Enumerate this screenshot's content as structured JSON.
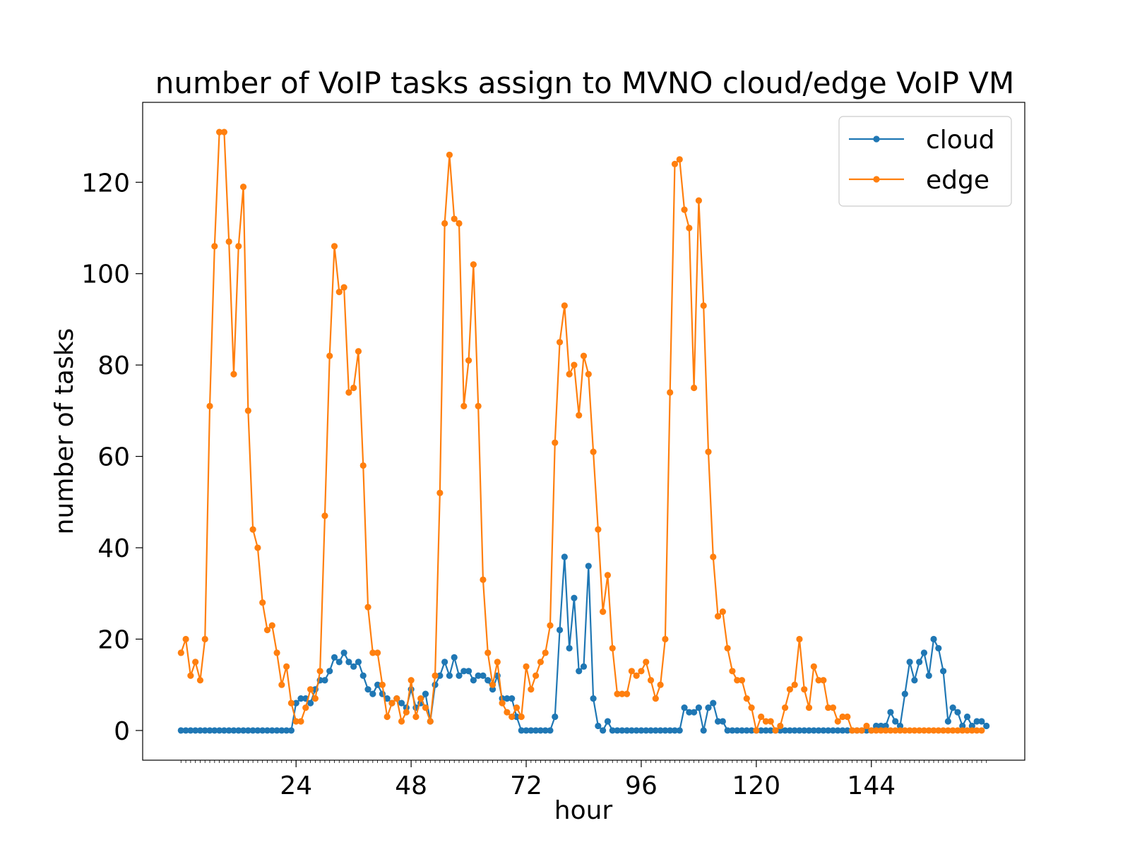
{
  "chart_data": {
    "type": "line",
    "title": "number of VoIP tasks assign to MVNO cloud/edge VoIP VM",
    "xlabel": "hour",
    "ylabel": "number of tasks",
    "xlim": [
      -8,
      176
    ],
    "ylim": [
      -6.5,
      137.5
    ],
    "x_ticks_major": [
      24,
      48,
      72,
      96,
      120,
      144
    ],
    "y_ticks": [
      0,
      20,
      40,
      60,
      80,
      100,
      120
    ],
    "grid": false,
    "legend_position": "top-right",
    "series": [
      {
        "name": "cloud",
        "color": "#1f77b4",
        "values": [
          0,
          0,
          0,
          0,
          0,
          0,
          0,
          0,
          0,
          0,
          0,
          0,
          0,
          0,
          0,
          0,
          0,
          0,
          0,
          0,
          0,
          0,
          0,
          0,
          6,
          7,
          7,
          6,
          9,
          11,
          11,
          13,
          16,
          15,
          17,
          15,
          14,
          15,
          12,
          9,
          8,
          10,
          8,
          7,
          6,
          7,
          6,
          5,
          9,
          5,
          6,
          8,
          2,
          10,
          12,
          15,
          12,
          16,
          12,
          13,
          13,
          11,
          12,
          12,
          11,
          9,
          12,
          7,
          7,
          7,
          3,
          0,
          0,
          0,
          0,
          0,
          0,
          0,
          3,
          22,
          38,
          18,
          29,
          13,
          14,
          36,
          7,
          1,
          0,
          2,
          0,
          0,
          0,
          0,
          0,
          0,
          0,
          0,
          0,
          0,
          0,
          0,
          0,
          0,
          0,
          5,
          4,
          4,
          5,
          0,
          5,
          6,
          2,
          2,
          0,
          0,
          0,
          0,
          0,
          0,
          0,
          0,
          0,
          0,
          0,
          0,
          0,
          0,
          0,
          0,
          0,
          0,
          0,
          0,
          0,
          0,
          0,
          0,
          0,
          0,
          0,
          0,
          0,
          0,
          0,
          1,
          1,
          1,
          4,
          2,
          1,
          8,
          15,
          11,
          15,
          17,
          12,
          20,
          18,
          13,
          2,
          5,
          4,
          1,
          3,
          1,
          2,
          2,
          1
        ]
      },
      {
        "name": "edge",
        "color": "#ff7f0e",
        "values": [
          17,
          20,
          12,
          15,
          11,
          20,
          71,
          106,
          131,
          131,
          107,
          78,
          106,
          119,
          70,
          44,
          40,
          28,
          22,
          23,
          17,
          10,
          14,
          6,
          2,
          2,
          5,
          9,
          7,
          13,
          47,
          82,
          106,
          96,
          97,
          74,
          75,
          83,
          58,
          27,
          17,
          17,
          10,
          3,
          6,
          7,
          2,
          4,
          11,
          3,
          7,
          5,
          2,
          12,
          52,
          111,
          126,
          112,
          111,
          71,
          81,
          102,
          71,
          33,
          17,
          10,
          15,
          6,
          4,
          3,
          5,
          3,
          14,
          9,
          12,
          15,
          17,
          23,
          63,
          85,
          93,
          78,
          80,
          69,
          82,
          78,
          61,
          44,
          26,
          34,
          18,
          8,
          8,
          8,
          13,
          12,
          13,
          15,
          11,
          7,
          10,
          20,
          74,
          124,
          125,
          114,
          110,
          75,
          116,
          93,
          61,
          38,
          25,
          26,
          18,
          13,
          11,
          11,
          7,
          5,
          0,
          3,
          2,
          2,
          0,
          1,
          5,
          9,
          10,
          20,
          9,
          5,
          14,
          11,
          11,
          5,
          5,
          2,
          3,
          3,
          0,
          0,
          0,
          1,
          0,
          0,
          0,
          0,
          0,
          0,
          0,
          0,
          0,
          0,
          0,
          0,
          0,
          0,
          0,
          0,
          0,
          0,
          0,
          0,
          0,
          0,
          0,
          0
        ]
      }
    ]
  }
}
